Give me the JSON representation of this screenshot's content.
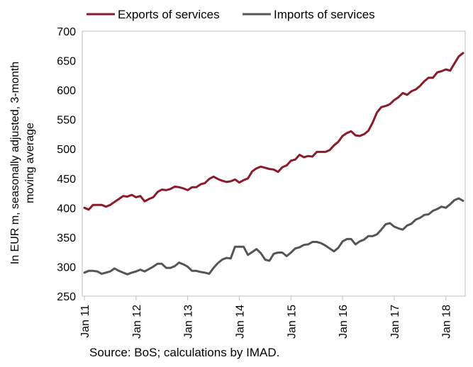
{
  "chart_data": {
    "type": "line",
    "title": "",
    "xlabel": "",
    "ylabel_lines": [
      "In EUR m, seasonally adjusted, 3-month",
      "moving average"
    ],
    "ylim": [
      250,
      700
    ],
    "yticks": [
      250,
      300,
      350,
      400,
      450,
      500,
      550,
      600,
      650,
      700
    ],
    "x_start": "2011-01",
    "x_end": "2018-05",
    "xtick_labels": [
      "Jan 11",
      "Jan 12",
      "Jan 13",
      "Jan 14",
      "Jan 15",
      "Jan 16",
      "Jan 17",
      "Jan 18"
    ],
    "grid": false,
    "legend_position": "top",
    "series": [
      {
        "name": "Exports of services",
        "color": "#8b1a2b",
        "values": [
          400,
          397,
          405,
          405,
          405,
          402,
          405,
          410,
          415,
          420,
          419,
          422,
          418,
          420,
          411,
          415,
          418,
          427,
          431,
          430,
          432,
          436,
          435,
          433,
          430,
          435,
          435,
          440,
          442,
          449,
          453,
          449,
          446,
          444,
          445,
          448,
          443,
          447,
          450,
          462,
          467,
          470,
          468,
          466,
          465,
          461,
          469,
          472,
          480,
          482,
          490,
          486,
          488,
          487,
          495,
          495,
          495,
          498,
          506,
          512,
          522,
          527,
          530,
          523,
          522,
          525,
          531,
          545,
          562,
          571,
          573,
          576,
          583,
          588,
          595,
          592,
          598,
          601,
          607,
          615,
          621,
          621,
          630,
          632,
          635,
          633,
          645,
          657,
          663
        ]
      },
      {
        "name": "Imports of services",
        "color": "#555555",
        "values": [
          290,
          293,
          293,
          292,
          288,
          290,
          292,
          297,
          293,
          290,
          287,
          290,
          292,
          295,
          292,
          296,
          300,
          305,
          305,
          298,
          298,
          301,
          307,
          304,
          300,
          293,
          293,
          291,
          290,
          288,
          298,
          306,
          312,
          315,
          314,
          334,
          334,
          334,
          320,
          325,
          330,
          323,
          312,
          310,
          322,
          324,
          324,
          318,
          324,
          331,
          333,
          337,
          338,
          342,
          342,
          340,
          336,
          331,
          326,
          332,
          343,
          347,
          347,
          338,
          343,
          346,
          352,
          352,
          355,
          363,
          372,
          374,
          368,
          365,
          363,
          370,
          373,
          380,
          383,
          388,
          389,
          395,
          398,
          402,
          400,
          406,
          413,
          416,
          412
        ]
      }
    ]
  },
  "source": "Source: BoS; calculations by IMAD."
}
